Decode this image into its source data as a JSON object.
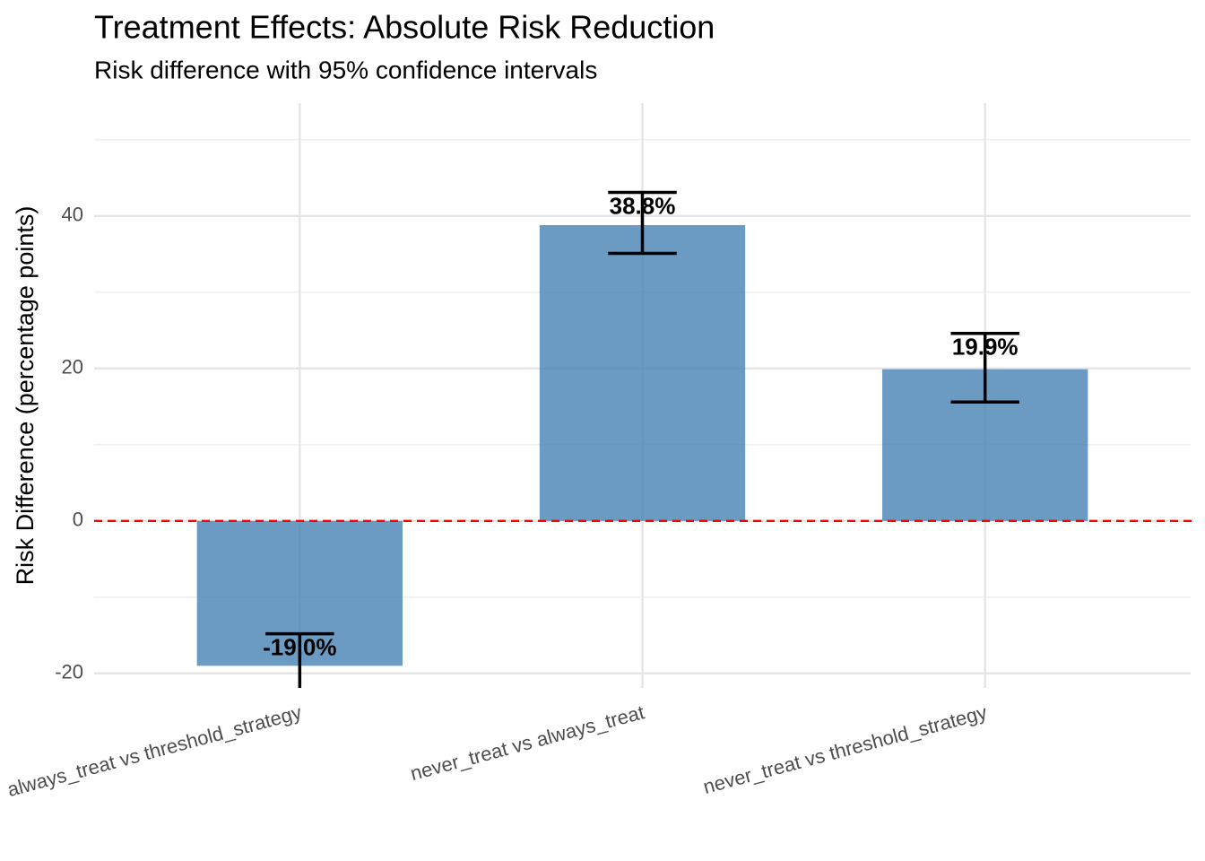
{
  "chart_data": {
    "type": "bar",
    "title": "Treatment Effects: Absolute Risk Reduction",
    "subtitle": "Risk difference with 95% confidence intervals",
    "y_label": "Risk Difference (percentage points)",
    "categories": [
      "always_treat vs threshold_strategy",
      "never_treat vs always_treat",
      "never_treat vs threshold_strategy"
    ],
    "values": [
      -19.0,
      38.8,
      19.9
    ],
    "value_labels": [
      "-19.0%",
      "38.8%",
      "19.9%"
    ],
    "lower": [
      -23.2,
      35.1,
      15.6
    ],
    "upper": [
      -14.8,
      43.1,
      24.6
    ],
    "color": "#4682b4",
    "alpha": 0.8,
    "ylim": [
      -21.9,
      54.8
    ],
    "yticks": [
      -20,
      0,
      20,
      40
    ],
    "y_minor_gridlines": [
      -10,
      10,
      30,
      50
    ],
    "grid": true,
    "reference_line": {
      "value": 0,
      "color": "#ff0000"
    }
  }
}
